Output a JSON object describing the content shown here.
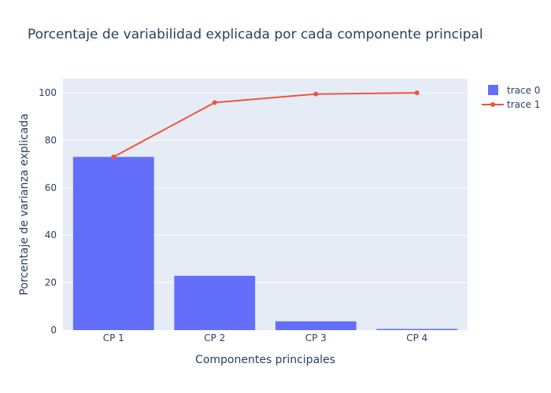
{
  "chart_data": {
    "type": "bar",
    "title": "Porcentaje de variabilidad explicada por cada componente principal",
    "xlabel": "Componentes principales",
    "ylabel": "Porcentaje de varianza explicada",
    "categories": [
      "CP 1",
      "CP 2",
      "CP 3",
      "CP 4"
    ],
    "ylim": [
      0,
      106
    ],
    "yticks": [
      0,
      20,
      40,
      60,
      80,
      100
    ],
    "grid": true,
    "legend_position": "top-right",
    "series": [
      {
        "name": "trace 0",
        "type": "bar",
        "color": "#636efa",
        "values": [
          73.0,
          22.9,
          3.7,
          0.5
        ]
      },
      {
        "name": "trace 1",
        "type": "line",
        "color": "#ef553b",
        "values": [
          73.0,
          95.9,
          99.5,
          100.0
        ]
      }
    ]
  }
}
